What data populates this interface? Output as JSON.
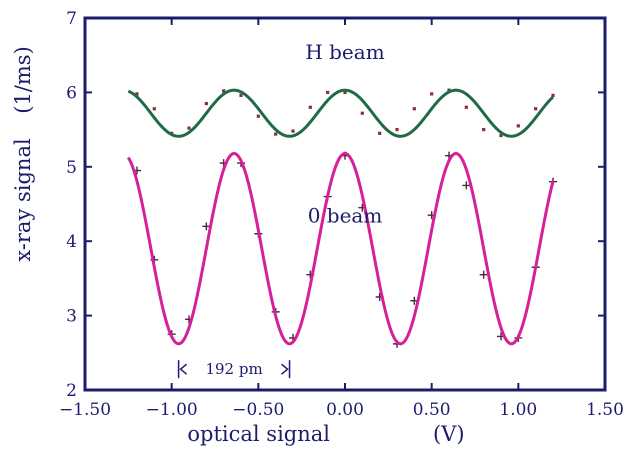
{
  "chart_data": {
    "type": "scatter",
    "title": "",
    "xlabel": "optical signal",
    "xunit": "(V)",
    "ylabel": "x-ray signal",
    "yunit": "(1/ms)",
    "xlim": [
      -1.5,
      1.5
    ],
    "ylim": [
      2,
      7
    ],
    "xticks": [
      -1.5,
      -1.0,
      -0.5,
      0.0,
      0.5,
      1.0,
      1.5
    ],
    "xtick_labels": [
      "−1.50",
      "−1.00",
      "−0.50",
      "0.00",
      "0.50",
      "1.00",
      "1.50"
    ],
    "yticks": [
      2,
      3,
      4,
      5,
      6,
      7
    ],
    "ytick_labels": [
      "2",
      "3",
      "4",
      "5",
      "6",
      "7"
    ],
    "grid": false,
    "legend": "none",
    "series": [
      {
        "name": "H beam",
        "color": "#8b2e3a",
        "fit_color": "#1f6b45",
        "marker": "dot",
        "x_range": [
          -1.25,
          1.2
        ],
        "fit": {
          "offset": 5.72,
          "amplitude": 0.31,
          "period": 0.64,
          "max_at": -0.64
        },
        "x": [
          -1.2,
          -1.1,
          -1.0,
          -0.9,
          -0.8,
          -0.7,
          -0.6,
          -0.5,
          -0.4,
          -0.3,
          -0.2,
          -0.1,
          0.0,
          0.1,
          0.2,
          0.3,
          0.4,
          0.5,
          0.6,
          0.7,
          0.8,
          0.9,
          1.0,
          1.1,
          1.2
        ],
        "y": [
          5.98,
          5.78,
          5.45,
          5.52,
          5.85,
          6.02,
          5.96,
          5.68,
          5.44,
          5.48,
          5.8,
          6.0,
          6.0,
          5.72,
          5.45,
          5.5,
          5.78,
          5.98,
          6.03,
          5.8,
          5.5,
          5.42,
          5.55,
          5.78,
          5.96
        ]
      },
      {
        "name": "0 beam",
        "color": "#4a2a3e",
        "fit_color": "#d6209a",
        "marker": "plus",
        "x_range": [
          -1.25,
          1.2
        ],
        "fit": {
          "offset": 3.9,
          "amplitude": 1.28,
          "period": 0.64,
          "max_at": -0.64
        },
        "x": [
          -1.2,
          -1.1,
          -1.0,
          -0.9,
          -0.8,
          -0.7,
          -0.6,
          -0.5,
          -0.4,
          -0.3,
          -0.2,
          -0.1,
          0.0,
          0.1,
          0.2,
          0.3,
          0.4,
          0.5,
          0.6,
          0.7,
          0.8,
          0.9,
          1.0,
          1.1,
          1.2
        ],
        "y": [
          4.95,
          3.75,
          2.75,
          2.95,
          4.2,
          5.05,
          5.05,
          4.1,
          3.05,
          2.7,
          3.55,
          4.6,
          5.15,
          4.45,
          3.25,
          2.62,
          3.2,
          4.35,
          5.15,
          4.75,
          3.55,
          2.72,
          2.7,
          3.65,
          4.8
        ]
      }
    ],
    "annotations": [
      {
        "text": "H beam",
        "x": 0.0,
        "y": 6.45
      },
      {
        "text": "0 beam",
        "x": 0.0,
        "y": 4.25
      },
      {
        "text": "192 pm",
        "type": "span",
        "x_start": -0.96,
        "x_end": -0.32,
        "y": 2.28
      }
    ]
  }
}
